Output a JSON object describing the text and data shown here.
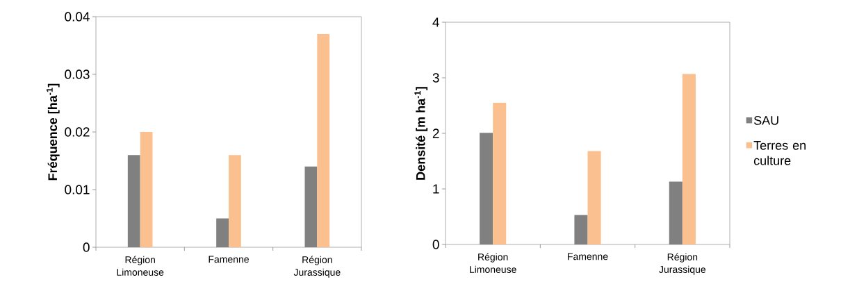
{
  "chart_data": [
    {
      "type": "bar",
      "ylabel": "Fréquence [ha$^{-1}$]",
      "categories": [
        "Région Limoneuse",
        "Famenne",
        "Région Jurassique"
      ],
      "series": [
        {
          "color": "#808080",
          "values": [
            0.016,
            0.005,
            0.014
          ]
        },
        {
          "color": "#fac090",
          "values": [
            0.02,
            0.016,
            0.037
          ]
        }
      ],
      "ylim": [
        0,
        0.04
      ],
      "yticks": [
        0,
        0.01,
        0.02,
        0.03,
        0.04
      ],
      "grid": false,
      "legend": false
    },
    {
      "type": "bar",
      "ylabel": "Densité [m ha$^{-1}$]",
      "categories": [
        "Région Limoneuse",
        "Famenne",
        "Région Jurassique"
      ],
      "series": [
        {
          "name": "SAU",
          "color": "#808080",
          "values": [
            2.01,
            0.53,
            1.13
          ]
        },
        {
          "name": "Terres en culture",
          "color": "#fac090",
          "values": [
            2.55,
            1.68,
            3.07
          ]
        }
      ],
      "ylim": [
        0,
        4
      ],
      "yticks": [
        0,
        1,
        2,
        3,
        4
      ],
      "grid": false,
      "legend": "right"
    }
  ]
}
